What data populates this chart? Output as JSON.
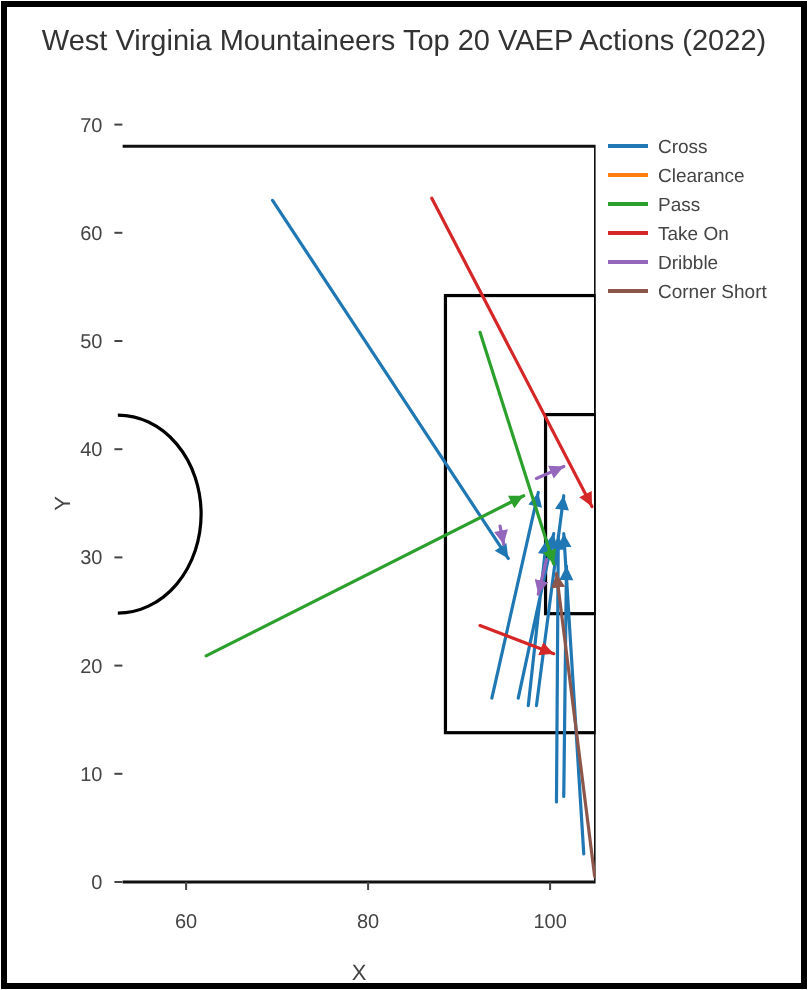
{
  "chart_data": {
    "type": "line",
    "title": "West Virginia Mountaineers Top 20 VAEP Actions (2022)",
    "xlabel": "X",
    "ylabel": "Y",
    "xlim": [
      53,
      105
    ],
    "ylim": [
      0,
      70
    ],
    "xticks": [
      60,
      80,
      100
    ],
    "yticks": [
      0,
      10,
      20,
      30,
      40,
      50,
      60,
      70
    ],
    "grid": false,
    "legend": "top right",
    "marker": "none",
    "line_style": "solid",
    "series": [
      {
        "name": "Cross",
        "color": "#1f77b4",
        "x": [
          69.5,
          95.4,
          null,
          93.6,
          98.7,
          null,
          96.5,
          100.4,
          null,
          97.6,
          99.6,
          null,
          98.5,
          101.5,
          null,
          100.7,
          100.9,
          null,
          101.5,
          101.8,
          null,
          103.7,
          101.5
        ],
        "values": [
          63,
          29.9,
          null,
          17,
          36,
          null,
          17,
          32.2,
          null,
          16.3,
          31.6,
          null,
          16.3,
          35.7,
          null,
          7.4,
          32,
          null,
          7.9,
          29.2,
          null,
          2.6,
          32.2
        ]
      },
      {
        "name": "Clearance",
        "color": "#ff7f0e"
      },
      {
        "name": "Pass",
        "color": "#2ca02c",
        "x": [
          62.2,
          97.1,
          null,
          92.3,
          100.4
        ],
        "values": [
          20.9,
          35.7,
          null,
          50.8,
          29.4
        ]
      },
      {
        "name": "Take On",
        "color": "#d62728",
        "x": [
          87,
          104.6,
          null,
          92.3,
          100.4
        ],
        "values": [
          63.2,
          34.7,
          null,
          23.7,
          21.1
        ]
      },
      {
        "name": "Dribble",
        "color": "#9467bd",
        "x": [
          98.5,
          101.5,
          null,
          94.5,
          94.9,
          null,
          99.6,
          98.7
        ],
        "values": [
          37.3,
          38.4,
          null,
          32.9,
          31.2,
          null,
          29.8,
          26.6
        ]
      },
      {
        "name": "Corner Short",
        "color": "#8c564b",
        "x": [
          104.9,
          100.7
        ],
        "values": [
          0.5,
          28.5
        ]
      }
    ]
  }
}
